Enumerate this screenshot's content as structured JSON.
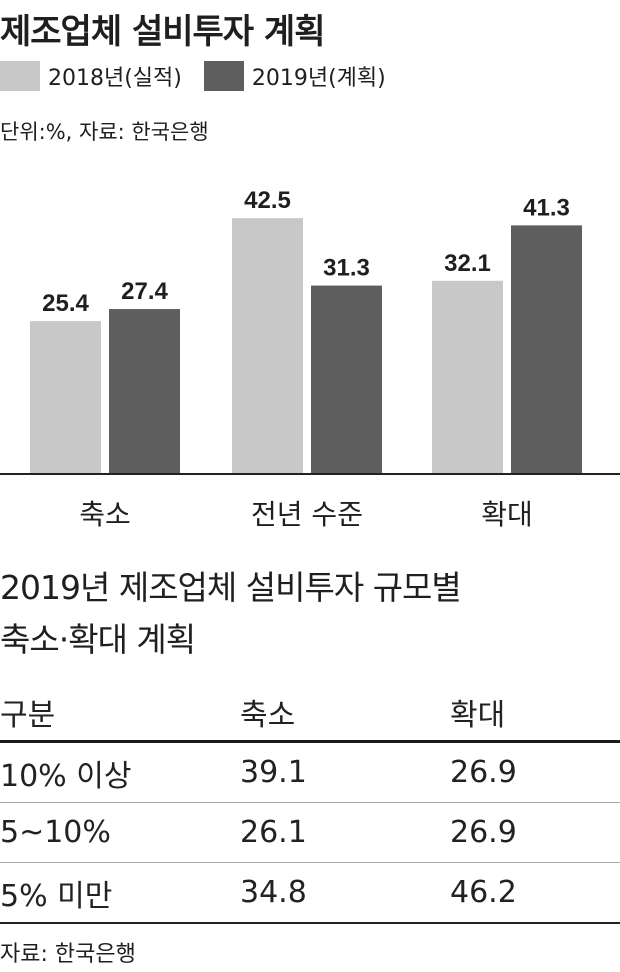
{
  "title": "제조업체 설비투자 계획",
  "legend": {
    "items": [
      "2018년(실적)",
      "2019년(계획)"
    ]
  },
  "unit_source": "단위:%, 자료: 한국은행",
  "colors": {
    "series_2018": "#c8c8c8",
    "series_2019": "#5e5e5f"
  },
  "chart_data": {
    "type": "bar",
    "categories": [
      "축소",
      "전년 수준",
      "확대"
    ],
    "series": [
      {
        "name": "2018년(실적)",
        "values": [
          25.4,
          42.5,
          32.1
        ]
      },
      {
        "name": "2019년(계획)",
        "values": [
          27.4,
          31.3,
          41.3
        ]
      }
    ],
    "title": "제조업체 설비투자 계획",
    "ylim": [
      0,
      50
    ],
    "grid": false,
    "legend_position": "top-left"
  },
  "table": {
    "title_line1": "2019년 제조업체 설비투자 규모별",
    "title_line2": "축소·확대 계획",
    "headers": [
      "구분",
      "축소",
      "확대"
    ],
    "rows": [
      [
        "10% 이상",
        "39.1",
        "26.9"
      ],
      [
        "5~10%",
        "26.1",
        "26.9"
      ],
      [
        "5% 미만",
        "34.8",
        "46.2"
      ]
    ],
    "source": "자료: 한국은행"
  }
}
